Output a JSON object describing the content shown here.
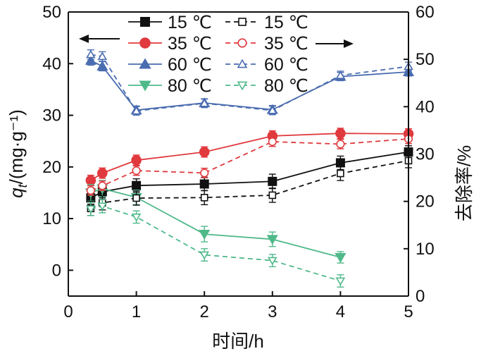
{
  "chart_data": {
    "type": "line",
    "x_label": "时间/h",
    "y_label_left_italic": "q",
    "y_label_left_sub": "t",
    "y_label_left_rest": "/(mg·g⁻¹)",
    "y_label_right": "去除率/%",
    "x_ticks": [
      "0",
      "1",
      "2",
      "3",
      "4",
      "5"
    ],
    "y_left_ticks": [
      "0",
      "10",
      "20",
      "30",
      "40",
      "50"
    ],
    "y_right_ticks": [
      "0",
      "10",
      "20",
      "30",
      "40",
      "50",
      "60"
    ],
    "xlim": [
      0,
      5
    ],
    "ylim_left": [
      -5,
      50
    ],
    "ylim_right": [
      0,
      60
    ],
    "legend_left_labels": [
      "15 ℃",
      "35 ℃",
      "60 ℃",
      "80 ℃"
    ],
    "legend_right_labels": [
      "15 ℃",
      "35 ℃",
      "60 ℃",
      "80 ℃"
    ],
    "series": [
      {
        "name": "15 ℃",
        "axis": "left",
        "style": "solid",
        "marker": "square",
        "filled": true,
        "color": "#111111",
        "x": [
          0.33,
          0.5,
          1,
          2,
          3,
          4,
          5
        ],
        "y": [
          14,
          15.2,
          16.4,
          16.7,
          17.2,
          20.8,
          22.9
        ],
        "err": [
          1.2,
          1.2,
          1.3,
          1.3,
          1.4,
          1.3,
          1.2
        ]
      },
      {
        "name": "35 ℃",
        "axis": "left",
        "style": "solid",
        "marker": "circle",
        "filled": true,
        "color": "#e0393e",
        "x": [
          0.33,
          0.5,
          1,
          2,
          3,
          4,
          5
        ],
        "y": [
          17.4,
          18.8,
          21.3,
          22.9,
          26,
          26.5,
          26.4
        ],
        "err": [
          1,
          1,
          1,
          1,
          1,
          1,
          1
        ]
      },
      {
        "name": "60 ℃",
        "axis": "left",
        "style": "solid",
        "marker": "triangle-up",
        "filled": true,
        "color": "#4a6cb0",
        "x": [
          0.33,
          0.5,
          1,
          2,
          3,
          4,
          5
        ],
        "y": [
          40.6,
          39.5,
          31,
          32.4,
          31.1,
          37.5,
          38.4
        ],
        "err": [
          0.9,
          0.9,
          0.8,
          0.8,
          0.8,
          0.8,
          0.8
        ]
      },
      {
        "name": "80 ℃",
        "axis": "left",
        "style": "solid",
        "marker": "triangle-down",
        "filled": true,
        "color": "#4fb98a",
        "x": [
          0.33,
          0.5,
          1
        ],
        "y": [
          15,
          15.8,
          14.1
        ],
        "err": [
          1.6,
          1.6,
          1.4
        ]
      },
      {
        "name": "80 ℃",
        "axis": "left",
        "style": "solid",
        "marker": "triangle-down",
        "filled": true,
        "color": "#4fb98a",
        "x": [
          1,
          2,
          3,
          4
        ],
        "y": [
          14.1,
          7,
          6,
          2.5
        ],
        "err": [
          1.4,
          1.5,
          1.4,
          1.1
        ]
      },
      {
        "name": "15 ℃",
        "axis": "right",
        "style": "dashed",
        "marker": "square",
        "filled": false,
        "color": "#111111",
        "x": [
          0.33,
          0.5,
          1,
          2,
          3,
          4,
          5
        ],
        "y": [
          18.5,
          19.7,
          20.7,
          20.8,
          21.3,
          25.9,
          28.6
        ],
        "err": [
          1.5,
          1.5,
          1.5,
          1.5,
          1.5,
          1.5,
          1.5
        ]
      },
      {
        "name": "35 ℃",
        "axis": "right",
        "style": "dashed",
        "marker": "circle",
        "filled": false,
        "color": "#e0393e",
        "x": [
          0.33,
          0.5,
          1,
          2,
          3,
          4,
          5
        ],
        "y": [
          22.3,
          23.3,
          26.5,
          26,
          32.6,
          32.1,
          33.2
        ],
        "err": [
          1,
          1,
          1,
          1,
          1,
          1,
          1
        ]
      },
      {
        "name": "60 ℃",
        "axis": "right",
        "style": "dashed",
        "marker": "triangle-up",
        "filled": false,
        "color": "#4a6cb0",
        "x": [
          0.33,
          0.5,
          1,
          2,
          3,
          4,
          5
        ],
        "y": [
          51,
          50.6,
          39.1,
          40.7,
          39.2,
          46.6,
          48.5
        ],
        "err": [
          1,
          1,
          0.9,
          0.9,
          0.9,
          0.9,
          0.9
        ]
      },
      {
        "name": "80 ℃",
        "axis": "right",
        "style": "dashed",
        "marker": "triangle-down",
        "filled": false,
        "color": "#4fb98a",
        "x": [
          0.33,
          0.5,
          1,
          2,
          3,
          4
        ],
        "y": [
          18.4,
          19,
          16.7,
          8.7,
          7.5,
          3.2
        ],
        "err": [
          1.4,
          1.4,
          1.3,
          1.3,
          1.3,
          1.3
        ]
      }
    ]
  }
}
